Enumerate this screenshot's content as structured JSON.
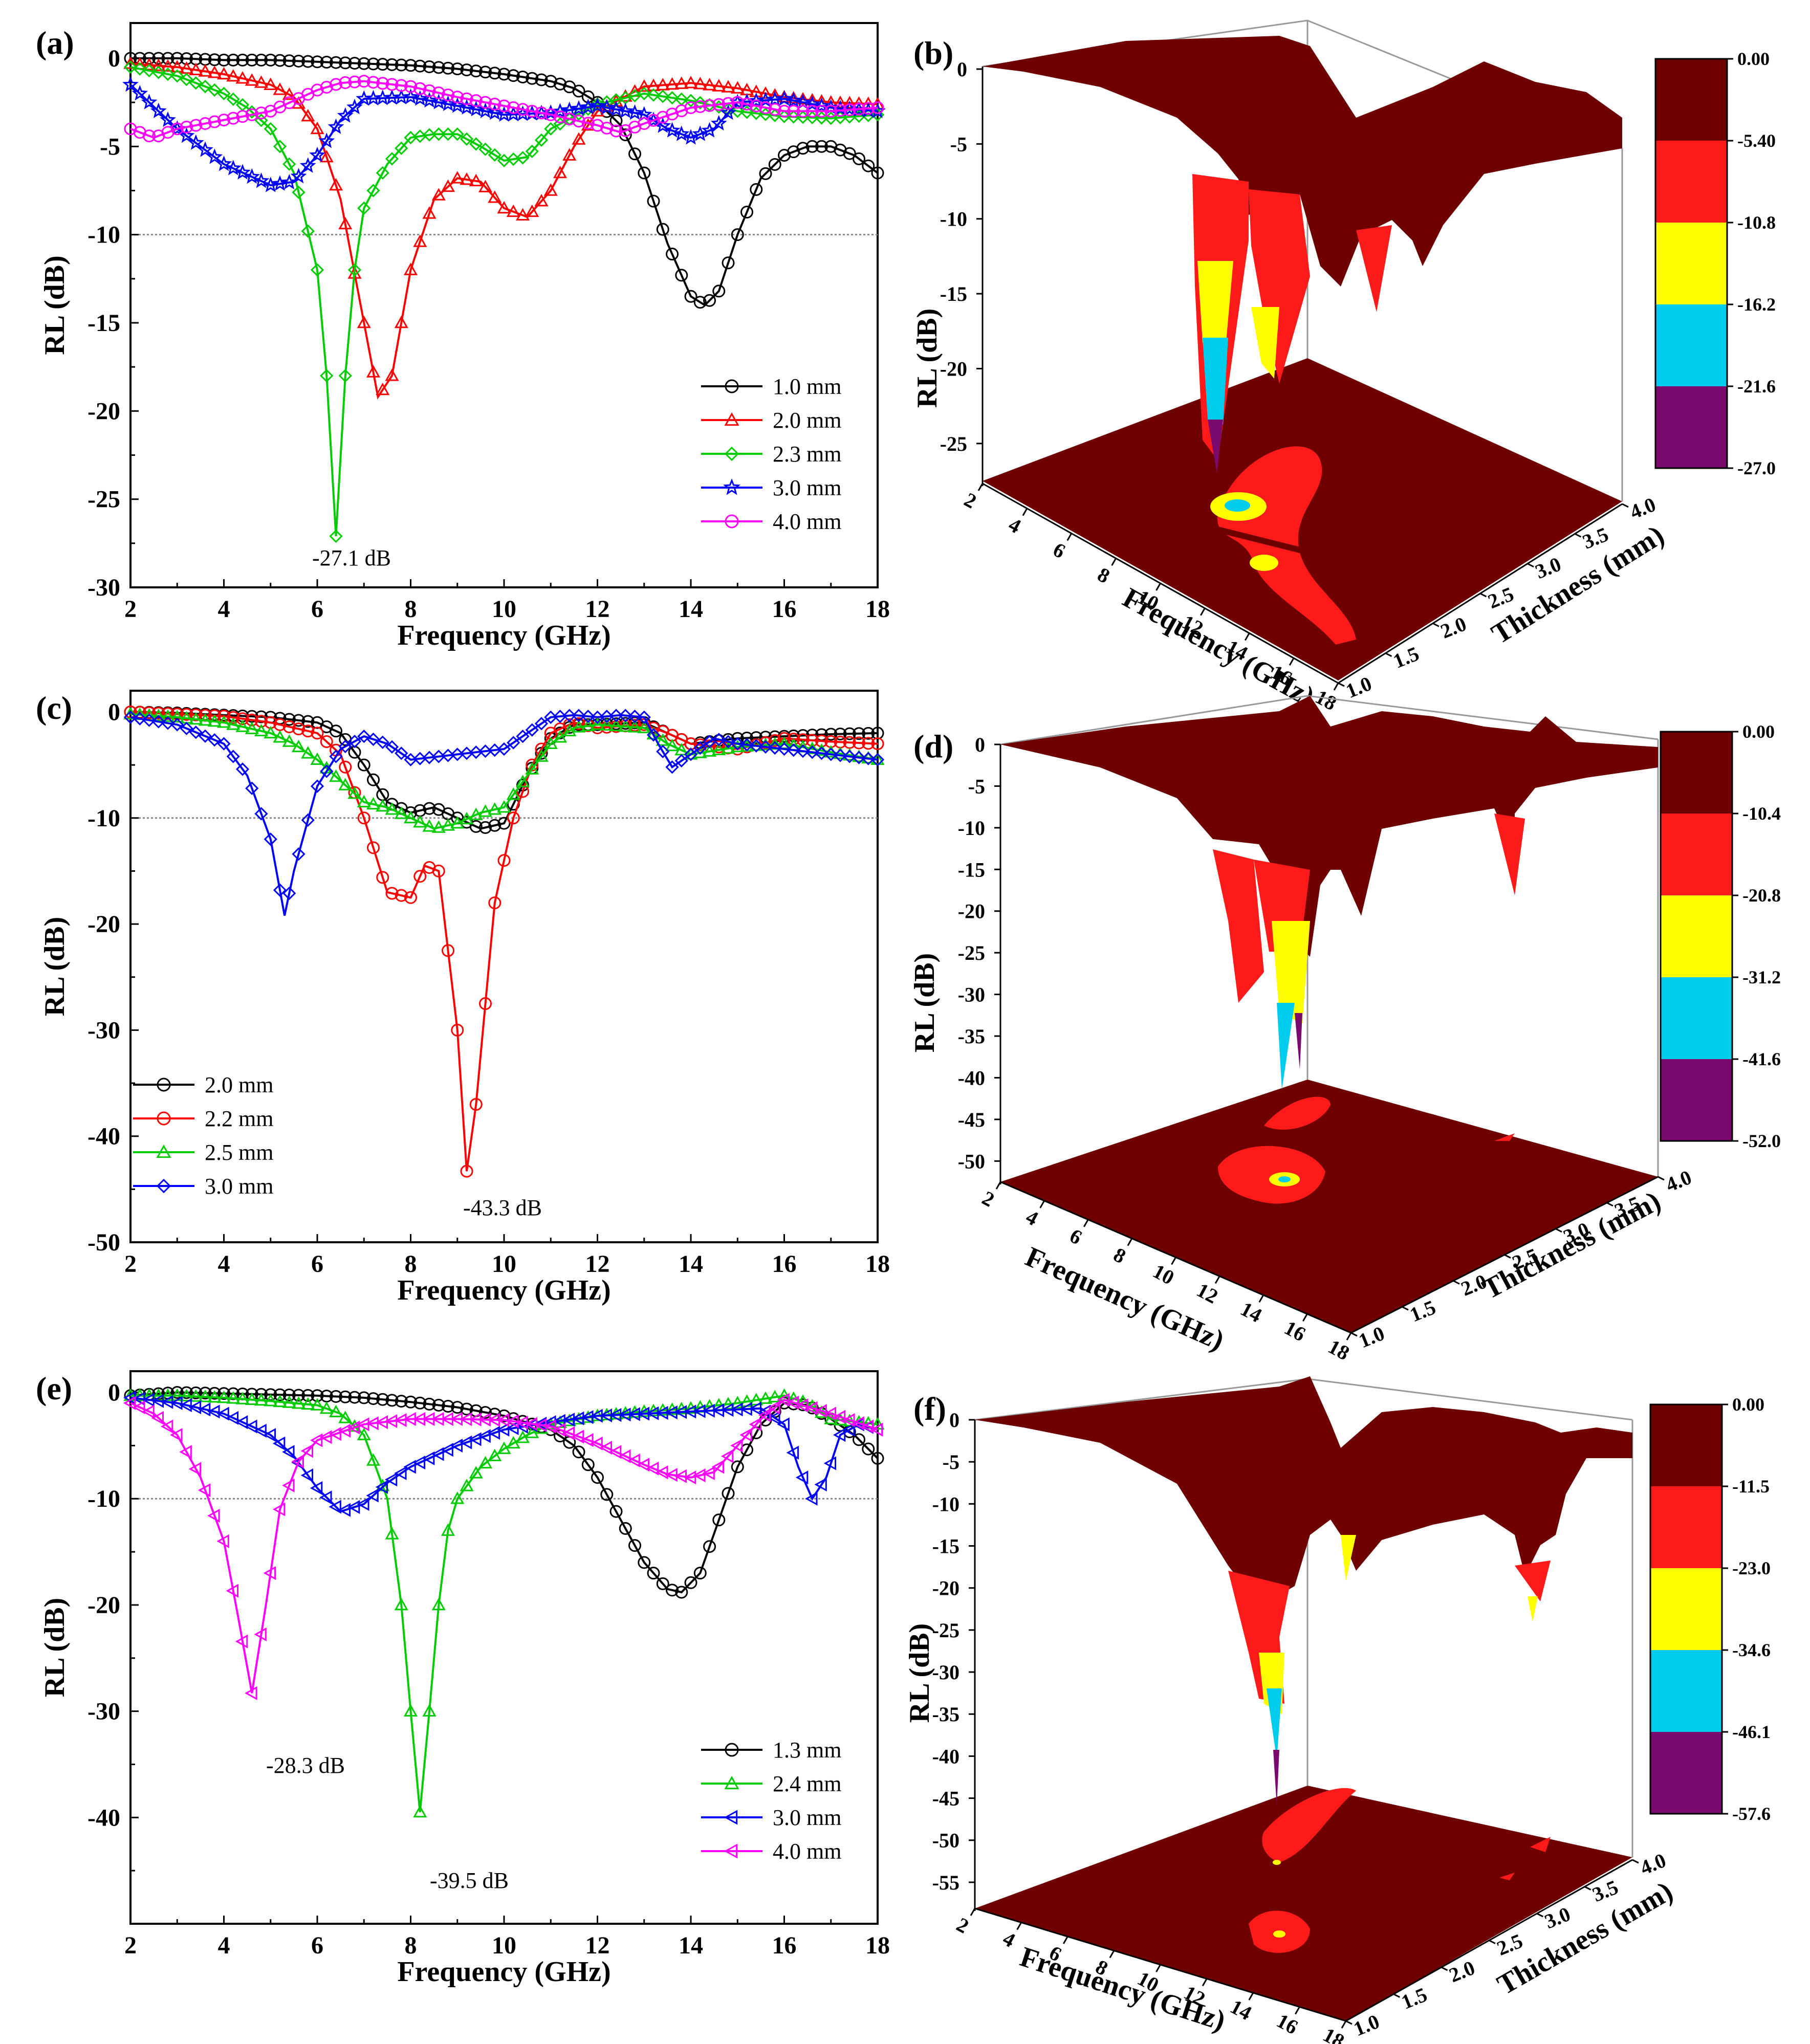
{
  "figure": {
    "colors": {
      "dark": "#6e0000",
      "red": "#ff1a1a",
      "yellow": "#ffff00",
      "cyan": "#00ccee",
      "purple": "#7a0a6e"
    }
  },
  "chart_data": [
    {
      "panel": "(a)",
      "type": "line",
      "xlabel": "Frequency (GHz)",
      "ylabel": "RL (dB)",
      "xlim": [
        2,
        18
      ],
      "ylim": [
        -30,
        2
      ],
      "xticks": [
        "2",
        "4",
        "6",
        "8",
        "10",
        "12",
        "14",
        "16",
        "18"
      ],
      "yticks": [
        "0",
        "-5",
        "-10",
        "-15",
        "-20",
        "-25",
        "-30"
      ],
      "reference_line": -10,
      "annotations": [
        {
          "text": "-27.1 dB",
          "x": 6.4,
          "y": -27.1
        }
      ],
      "series": [
        {
          "name": "1.0 mm",
          "color": "#000000",
          "marker": "circle",
          "x": [
            2,
            3,
            4,
            5,
            6,
            7,
            8,
            9,
            10,
            11,
            11.5,
            12,
            12.5,
            13,
            13.5,
            14,
            14.3,
            14.6,
            15,
            15.5,
            16,
            16.5,
            17,
            17.5,
            18
          ],
          "y": [
            0,
            0,
            -0.1,
            -0.1,
            -0.2,
            -0.3,
            -0.4,
            -0.6,
            -0.9,
            -1.3,
            -1.7,
            -2.5,
            -3.8,
            -6.5,
            -10.5,
            -13.5,
            -14,
            -13.2,
            -10,
            -6.8,
            -5.5,
            -5,
            -5,
            -5.5,
            -6.5
          ]
        },
        {
          "name": "2.0 mm",
          "color": "#ff0000",
          "marker": "triangle",
          "x": [
            2,
            3,
            4,
            5,
            5.5,
            6,
            6.5,
            7,
            7.3,
            7.6,
            8,
            8.5,
            9,
            9.5,
            10,
            10.5,
            11,
            11.5,
            12,
            13,
            14,
            15,
            16,
            17,
            18
          ],
          "y": [
            -0.3,
            -0.5,
            -0.9,
            -1.5,
            -2.2,
            -4,
            -8,
            -15,
            -19.2,
            -18,
            -12,
            -8,
            -6.8,
            -7,
            -8.5,
            -9,
            -7.5,
            -5,
            -3,
            -1.6,
            -1.4,
            -1.7,
            -2.2,
            -2.5,
            -2.6
          ]
        },
        {
          "name": "2.3 mm",
          "color": "#00cc00",
          "marker": "diamond",
          "x": [
            2,
            3,
            4,
            4.5,
            5,
            5.5,
            6,
            6.2,
            6.4,
            6.6,
            6.8,
            7,
            7.5,
            8,
            8.5,
            9,
            9.5,
            10,
            10.5,
            11,
            12,
            13,
            14,
            15,
            16,
            17,
            18
          ],
          "y": [
            -0.5,
            -1,
            -2,
            -2.8,
            -4,
            -6.5,
            -12,
            -18,
            -27.1,
            -18,
            -12,
            -8.5,
            -6,
            -4.5,
            -4.3,
            -4.3,
            -5,
            -5.8,
            -5.6,
            -4,
            -2.6,
            -2,
            -2.4,
            -3,
            -3.3,
            -3.4,
            -3.2
          ]
        },
        {
          "name": "3.0 mm",
          "color": "#0000ff",
          "marker": "star",
          "x": [
            2,
            3,
            4,
            5,
            5.5,
            6,
            6.5,
            7,
            8,
            9,
            10,
            11,
            12,
            13,
            13.5,
            14,
            14.5,
            15,
            16,
            17,
            18
          ],
          "y": [
            -1.5,
            -4,
            -6,
            -7.2,
            -7,
            -5.5,
            -3.5,
            -2.3,
            -2.2,
            -2.7,
            -3.2,
            -3.1,
            -2.7,
            -3.2,
            -4,
            -4.5,
            -4,
            -2.5,
            -2.3,
            -2.8,
            -3
          ]
        },
        {
          "name": "4.0 mm",
          "color": "#ff00ff",
          "marker": "circle",
          "x": [
            2,
            2.5,
            3,
            4,
            5,
            6,
            6.5,
            7,
            8,
            9,
            10,
            11,
            12,
            12.5,
            13,
            14,
            15,
            16,
            17,
            18
          ],
          "y": [
            -4,
            -4.5,
            -4,
            -3.5,
            -3,
            -1.8,
            -1.4,
            -1.3,
            -1.6,
            -2.2,
            -2.7,
            -3.2,
            -3.8,
            -4.2,
            -3.7,
            -2.8,
            -2.5,
            -3,
            -3,
            -2.8
          ]
        }
      ]
    },
    {
      "panel": "(c)",
      "type": "line",
      "xlabel": "Frequency (GHz)",
      "ylabel": "RL (dB)",
      "xlim": [
        2,
        18
      ],
      "ylim": [
        -50,
        2
      ],
      "xticks": [
        "2",
        "4",
        "6",
        "8",
        "10",
        "12",
        "14",
        "16",
        "18"
      ],
      "yticks": [
        "0",
        "-10",
        "-20",
        "-30",
        "-40",
        "-50"
      ],
      "reference_line": -10,
      "annotations": [
        {
          "text": "-43.3 dB",
          "x": 9.2,
          "y": -43.3
        }
      ],
      "series": [
        {
          "name": "2.0 mm",
          "color": "#000000",
          "marker": "circle",
          "x": [
            2,
            3,
            4,
            5,
            6,
            6.5,
            7,
            7.5,
            8,
            8.5,
            9,
            9.5,
            10,
            10.5,
            11,
            11.5,
            12,
            13,
            13.5,
            14,
            15,
            16,
            17,
            18
          ],
          "y": [
            0,
            -0.1,
            -0.3,
            -0.5,
            -1,
            -2,
            -5,
            -8.5,
            -9.5,
            -9,
            -10,
            -11,
            -10.5,
            -6,
            -2.5,
            -1.2,
            -1.2,
            -1,
            -2,
            -3,
            -2.5,
            -2.3,
            -2.1,
            -2
          ]
        },
        {
          "name": "2.2 mm",
          "color": "#ff0000",
          "marker": "circle",
          "x": [
            2,
            3,
            4,
            5,
            6,
            6.5,
            7,
            7.5,
            8,
            8.3,
            8.6,
            9,
            9.2,
            9.4,
            9.8,
            10.2,
            10.6,
            11,
            11.5,
            12,
            13,
            13.5,
            14,
            15,
            16,
            17,
            18
          ],
          "y": [
            0,
            -0.2,
            -0.4,
            -1,
            -2,
            -4,
            -10,
            -17,
            -17.5,
            -14.5,
            -15,
            -30,
            -43.3,
            -37,
            -18,
            -10,
            -5,
            -2,
            -1,
            -1.5,
            -1.2,
            -2,
            -3,
            -3.5,
            -2.5,
            -2.8,
            -3
          ]
        },
        {
          "name": "2.5 mm",
          "color": "#00cc00",
          "marker": "triangle",
          "x": [
            2,
            3,
            4,
            5,
            5.5,
            6,
            6.5,
            7,
            7.5,
            8,
            8.5,
            9,
            9.5,
            10,
            10.5,
            11,
            11.5,
            12,
            13,
            13.5,
            14,
            15,
            16,
            17,
            18
          ],
          "y": [
            -0.2,
            -0.5,
            -1,
            -2,
            -3,
            -4.5,
            -6.5,
            -8.5,
            -9,
            -10,
            -11,
            -10.5,
            -9.5,
            -9,
            -6,
            -3,
            -1.5,
            -1.2,
            -1.5,
            -3,
            -4,
            -3.3,
            -3,
            -3.8,
            -4.5
          ]
        },
        {
          "name": "3.0 mm",
          "color": "#0000ff",
          "marker": "diamond",
          "x": [
            2,
            3,
            4,
            4.5,
            5,
            5.3,
            5.5,
            6,
            6.5,
            7,
            7.5,
            8,
            9,
            10,
            10.5,
            11,
            11.5,
            12,
            12.5,
            13,
            13.3,
            13.6,
            14,
            14.5,
            15,
            16,
            17,
            18
          ],
          "y": [
            -0.5,
            -1.2,
            -3,
            -6,
            -12,
            -19.2,
            -15,
            -7,
            -3.5,
            -2.3,
            -3,
            -4.5,
            -4,
            -3.5,
            -2,
            -0.5,
            -0.3,
            -0.5,
            -0.3,
            -0.5,
            -3,
            -5.2,
            -4,
            -2.5,
            -3,
            -3.5,
            -4,
            -4.5
          ]
        }
      ]
    },
    {
      "panel": "(e)",
      "type": "line",
      "xlabel": "Frequency (GHz)",
      "ylabel": "RL (dB)",
      "xlim": [
        2,
        18
      ],
      "ylim": [
        -50,
        2
      ],
      "xticks": [
        "2",
        "4",
        "6",
        "8",
        "10",
        "12",
        "14",
        "16",
        "18"
      ],
      "yticks": [
        "0",
        "-10",
        "-20",
        "-30",
        "-40"
      ],
      "reference_line": -10,
      "annotations": [
        {
          "text": "-28.3 dB",
          "x": 4.6,
          "y": -28.3
        },
        {
          "text": "-39.5 dB",
          "x": 8.2,
          "y": -39.5
        }
      ],
      "series": [
        {
          "name": "1.3 mm",
          "color": "#000000",
          "marker": "circle",
          "x": [
            2,
            3,
            4,
            5,
            6,
            7,
            8,
            9,
            10,
            11,
            11.5,
            12,
            12.5,
            13,
            13.5,
            13.8,
            14.2,
            14.6,
            15,
            15.5,
            16,
            16.5,
            17,
            17.5,
            18
          ],
          "y": [
            -0.3,
            0,
            -0.1,
            -0.2,
            -0.3,
            -0.5,
            -0.9,
            -1.4,
            -2.2,
            -3.5,
            -5,
            -8,
            -12,
            -16,
            -18.5,
            -18.8,
            -17,
            -12,
            -7,
            -3,
            -1,
            -1.2,
            -2.5,
            -4,
            -6.2
          ]
        },
        {
          "name": "2.4 mm",
          "color": "#00cc00",
          "marker": "triangle",
          "x": [
            2,
            3,
            4,
            5,
            6,
            6.5,
            7,
            7.5,
            7.8,
            8,
            8.2,
            8.4,
            8.6,
            8.8,
            9,
            9.5,
            10,
            10.5,
            11,
            12,
            13,
            14,
            15,
            16,
            16.5,
            17,
            18
          ],
          "y": [
            -0.3,
            -0.3,
            -0.5,
            -0.8,
            -1.2,
            -2,
            -4,
            -10,
            -20,
            -30,
            -39.5,
            -30,
            -20,
            -13,
            -10,
            -7,
            -5.3,
            -4,
            -3,
            -2.2,
            -1.8,
            -1.5,
            -1,
            -0.3,
            -1,
            -2.5,
            -3
          ]
        },
        {
          "name": "3.0 mm",
          "color": "#0000ff",
          "marker": "triangle-left",
          "x": [
            2,
            3,
            4,
            5,
            5.5,
            6,
            6.5,
            7,
            7.5,
            8,
            9,
            10,
            11,
            12,
            13,
            14,
            15,
            15.5,
            16,
            16.3,
            16.6,
            16.9,
            17.2,
            17.6,
            18
          ],
          "y": [
            -0.5,
            -1,
            -2,
            -4,
            -6,
            -9,
            -11.2,
            -10.5,
            -8.5,
            -7,
            -5,
            -3.5,
            -2.8,
            -2.2,
            -2,
            -1.8,
            -1.6,
            -1.5,
            -3,
            -7,
            -10,
            -8,
            -4,
            -3,
            -3.5
          ]
        },
        {
          "name": "4.0 mm",
          "color": "#ff00ff",
          "marker": "triangle-left",
          "x": [
            2,
            2.5,
            3,
            3.5,
            4,
            4.3,
            4.6,
            4.9,
            5.2,
            5.6,
            6,
            7,
            8,
            9,
            10,
            11,
            12,
            13,
            13.5,
            14,
            14.5,
            15,
            15.5,
            16,
            17,
            18
          ],
          "y": [
            -1,
            -2,
            -4,
            -8,
            -14,
            -21,
            -28.3,
            -20,
            -11,
            -6.5,
            -4.5,
            -3,
            -2.5,
            -2.5,
            -2.6,
            -3.2,
            -4.8,
            -6.8,
            -7.7,
            -8,
            -7.5,
            -5,
            -2.5,
            -0.7,
            -2,
            -3.5
          ]
        }
      ]
    }
  ],
  "surfaces": [
    {
      "panel": "(b)",
      "zlabel": "RL (dB)",
      "flabel": "Frequency (GHz)",
      "tlabel": "Thickness (mm)",
      "zticks": [
        "0",
        "-5",
        "-10",
        "-15",
        "-20",
        "-25"
      ],
      "fticks": [
        "2",
        "4",
        "6",
        "8",
        "10",
        "12",
        "14",
        "16",
        "18"
      ],
      "tticks": [
        "1.0",
        "1.5",
        "2.0",
        "2.5",
        "3.0",
        "3.5",
        "4.0"
      ],
      "colorbar": [
        "0.00",
        "-5.40",
        "-10.8",
        "-16.2",
        "-21.6",
        "-27.0"
      ]
    },
    {
      "panel": "(d)",
      "zlabel": "RL (dB)",
      "flabel": "Frequency (GHz)",
      "tlabel": "Thickness (mm)",
      "zticks": [
        "0",
        "-5",
        "-10",
        "-15",
        "-20",
        "-25",
        "-30",
        "-35",
        "-40",
        "-45",
        "-50"
      ],
      "fticks": [
        "2",
        "4",
        "6",
        "8",
        "10",
        "12",
        "14",
        "16",
        "18"
      ],
      "tticks": [
        "1.0",
        "1.5",
        "2.0",
        "2.5",
        "3.0",
        "3.5",
        "4.0"
      ],
      "colorbar": [
        "0.00",
        "-10.4",
        "-20.8",
        "-31.2",
        "-41.6",
        "-52.0"
      ]
    },
    {
      "panel": "(f)",
      "zlabel": "RL (dB)",
      "flabel": "Frequency (GHz)",
      "tlabel": "Thickness (mm)",
      "zticks": [
        "0",
        "-5",
        "-10",
        "-15",
        "-20",
        "-25",
        "-30",
        "-35",
        "-40",
        "-45",
        "-50",
        "-55"
      ],
      "fticks": [
        "2",
        "4",
        "6",
        "8",
        "10",
        "12",
        "14",
        "16",
        "18"
      ],
      "tticks": [
        "1.0",
        "1.5",
        "2.0",
        "2.5",
        "3.0",
        "3.5",
        "4.0"
      ],
      "colorbar": [
        "0.00",
        "-11.5",
        "-23.0",
        "-34.6",
        "-46.1",
        "-57.6"
      ]
    }
  ]
}
